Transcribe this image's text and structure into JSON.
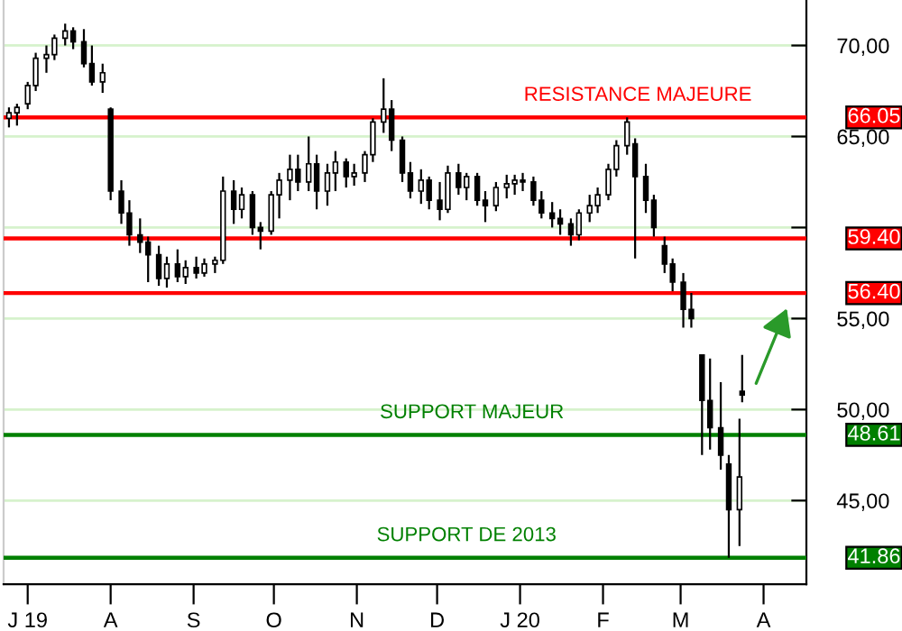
{
  "chart_data": {
    "type": "candlestick",
    "x": [
      "2019-06-24",
      "2019-06-27",
      "2019-07-01",
      "2019-07-04",
      "2019-07-08",
      "2019-07-11",
      "2019-07-15",
      "2019-07-18",
      "2019-07-22",
      "2019-07-25",
      "2019-07-29",
      "2019-08-01",
      "2019-08-05",
      "2019-08-08",
      "2019-08-12",
      "2019-08-15",
      "2019-08-19",
      "2019-08-22",
      "2019-08-26",
      "2019-08-29",
      "2019-09-02",
      "2019-09-05",
      "2019-09-09",
      "2019-09-12",
      "2019-09-16",
      "2019-09-19",
      "2019-09-23",
      "2019-09-26",
      "2019-09-30",
      "2019-10-03",
      "2019-10-07",
      "2019-10-10",
      "2019-10-14",
      "2019-10-17",
      "2019-10-21",
      "2019-10-24",
      "2019-10-28",
      "2019-10-31",
      "2019-11-04",
      "2019-11-07",
      "2019-11-11",
      "2019-11-14",
      "2019-11-18",
      "2019-11-21",
      "2019-11-25",
      "2019-11-28",
      "2019-12-02",
      "2019-12-05",
      "2019-12-09",
      "2019-12-12",
      "2019-12-16",
      "2019-12-19",
      "2019-12-23",
      "2019-12-27",
      "2019-12-30",
      "2020-01-02",
      "2020-01-06",
      "2020-01-09",
      "2020-01-13",
      "2020-01-16",
      "2020-01-20",
      "2020-01-23",
      "2020-01-27",
      "2020-01-30",
      "2020-02-03",
      "2020-02-06",
      "2020-02-10",
      "2020-02-13",
      "2020-02-17",
      "2020-02-20",
      "2020-02-24",
      "2020-02-27",
      "2020-03-02",
      "2020-03-05",
      "2020-03-09",
      "2020-03-12",
      "2020-03-16",
      "2020-03-19",
      "2020-03-23",
      "2020-03-24"
    ],
    "ohlc": [
      [
        66.0,
        66.6,
        65.5,
        66.3
      ],
      [
        66.3,
        66.8,
        65.6,
        66.6
      ],
      [
        66.8,
        68.0,
        66.5,
        67.8
      ],
      [
        67.8,
        69.6,
        67.5,
        69.3
      ],
      [
        69.3,
        70.0,
        68.5,
        69.5
      ],
      [
        69.5,
        70.6,
        69.2,
        70.4
      ],
      [
        70.4,
        71.2,
        70.0,
        70.8
      ],
      [
        70.8,
        71.0,
        69.8,
        70.2
      ],
      [
        70.2,
        70.9,
        68.8,
        69.0
      ],
      [
        69.0,
        70.0,
        67.8,
        68.0
      ],
      [
        68.0,
        69.0,
        67.4,
        68.5
      ],
      [
        66.5,
        66.6,
        61.5,
        62.0
      ],
      [
        62.0,
        62.6,
        60.2,
        60.8
      ],
      [
        60.8,
        61.5,
        59.0,
        59.6
      ],
      [
        59.6,
        60.5,
        58.6,
        59.2
      ],
      [
        59.2,
        59.5,
        57.0,
        58.5
      ],
      [
        58.5,
        59.0,
        56.8,
        57.2
      ],
      [
        57.2,
        58.4,
        56.7,
        58.0
      ],
      [
        58.0,
        58.8,
        57.0,
        57.3
      ],
      [
        57.3,
        58.2,
        56.9,
        57.8
      ],
      [
        57.8,
        58.4,
        57.2,
        57.5
      ],
      [
        57.5,
        58.3,
        57.3,
        58.0
      ],
      [
        58.0,
        58.4,
        57.5,
        58.2
      ],
      [
        58.2,
        62.8,
        58.0,
        62.0
      ],
      [
        62.0,
        62.6,
        60.2,
        61.0
      ],
      [
        61.0,
        62.2,
        60.5,
        61.8
      ],
      [
        61.8,
        62.0,
        59.6,
        60.0
      ],
      [
        60.0,
        60.3,
        58.8,
        59.8
      ],
      [
        59.8,
        62.0,
        59.6,
        61.8
      ],
      [
        61.8,
        63.0,
        60.5,
        62.6
      ],
      [
        62.6,
        64.0,
        61.5,
        63.2
      ],
      [
        63.2,
        64.0,
        62.0,
        62.5
      ],
      [
        62.5,
        65.0,
        62.0,
        63.5
      ],
      [
        63.5,
        64.0,
        61.0,
        62.0
      ],
      [
        62.0,
        63.5,
        61.2,
        63.0
      ],
      [
        63.0,
        64.2,
        62.0,
        63.6
      ],
      [
        63.6,
        63.8,
        62.2,
        62.8
      ],
      [
        62.8,
        63.5,
        62.3,
        63.0
      ],
      [
        63.0,
        64.2,
        62.5,
        64.0
      ],
      [
        64.0,
        66.0,
        63.6,
        65.8
      ],
      [
        65.8,
        68.2,
        65.2,
        66.5
      ],
      [
        66.5,
        67.0,
        64.2,
        64.8
      ],
      [
        64.8,
        65.0,
        62.5,
        63.0
      ],
      [
        63.0,
        63.6,
        61.6,
        62.0
      ],
      [
        62.0,
        63.2,
        61.3,
        62.6
      ],
      [
        62.6,
        62.8,
        61.0,
        61.5
      ],
      [
        61.5,
        62.5,
        60.4,
        61.0
      ],
      [
        61.0,
        63.4,
        60.8,
        63.0
      ],
      [
        63.0,
        63.5,
        61.8,
        62.2
      ],
      [
        62.2,
        63.0,
        61.5,
        62.8
      ],
      [
        62.8,
        63.0,
        61.2,
        61.5
      ],
      [
        61.5,
        62.0,
        60.3,
        61.2
      ],
      [
        61.2,
        62.5,
        60.9,
        62.2
      ],
      [
        62.2,
        62.9,
        61.6,
        62.4
      ],
      [
        62.4,
        62.9,
        61.8,
        62.6
      ],
      [
        62.6,
        63.0,
        62.0,
        62.5
      ],
      [
        62.5,
        62.8,
        61.2,
        61.5
      ],
      [
        61.5,
        62.0,
        60.5,
        60.8
      ],
      [
        60.8,
        61.4,
        60.0,
        60.5
      ],
      [
        60.5,
        61.0,
        59.6,
        60.2
      ],
      [
        60.2,
        60.5,
        59.0,
        59.6
      ],
      [
        59.6,
        61.0,
        59.3,
        60.8
      ],
      [
        60.8,
        61.8,
        60.3,
        61.2
      ],
      [
        61.2,
        62.2,
        60.8,
        61.8
      ],
      [
        61.8,
        63.5,
        61.5,
        63.2
      ],
      [
        63.2,
        64.8,
        62.8,
        64.5
      ],
      [
        64.5,
        66.05,
        64.0,
        65.8
      ],
      [
        64.6,
        64.9,
        58.3,
        62.8
      ],
      [
        62.8,
        63.5,
        60.8,
        61.5
      ],
      [
        61.5,
        61.8,
        59.5,
        60.0
      ],
      [
        59.0,
        59.5,
        57.5,
        58.0
      ],
      [
        58.0,
        58.3,
        56.5,
        57.0
      ],
      [
        57.0,
        57.5,
        54.5,
        55.5
      ],
      [
        55.5,
        56.4,
        54.5,
        55.0
      ],
      [
        53.0,
        53.0,
        47.5,
        50.5
      ],
      [
        50.5,
        52.8,
        47.8,
        49.0
      ],
      [
        49.0,
        51.5,
        46.7,
        47.5
      ],
      [
        47.0,
        47.5,
        41.86,
        44.5
      ],
      [
        44.5,
        49.5,
        42.5,
        46.3
      ],
      [
        51.0,
        53.0,
        50.4,
        50.8
      ]
    ],
    "color": "#000000",
    "xlim": [
      "2019-06-22",
      "2020-04-17"
    ],
    "xticks": [
      {
        "value": "2019-07-01",
        "label": "J 19"
      },
      {
        "value": "2019-08-01",
        "label": "A"
      },
      {
        "value": "2019-09-01",
        "label": "S"
      },
      {
        "value": "2019-10-01",
        "label": "O"
      },
      {
        "value": "2019-11-01",
        "label": "N"
      },
      {
        "value": "2019-12-01",
        "label": "D"
      },
      {
        "value": "2020-01-01",
        "label": "J 20"
      },
      {
        "value": "2020-02-01",
        "label": "F"
      },
      {
        "value": "2020-03-01",
        "label": "M"
      },
      {
        "value": "2020-04-01",
        "label": "A"
      }
    ],
    "ylim": [
      40.4,
      72.5
    ],
    "yticks": [
      {
        "value": 45,
        "label": "45,00"
      },
      {
        "value": 50,
        "label": "50,00"
      },
      {
        "value": 55,
        "label": "55,00"
      },
      {
        "value": 60,
        "label": null
      },
      {
        "value": 65,
        "label": "65,00"
      },
      {
        "value": 70,
        "label": "70,00"
      }
    ],
    "grid": "y",
    "ref_lines": [
      {
        "axis": "y",
        "value": 66.05,
        "label": "66.05",
        "color": "#ff0000"
      },
      {
        "axis": "y",
        "value": 59.4,
        "label": "59.40",
        "color": "#ff0000"
      },
      {
        "axis": "y",
        "value": 56.4,
        "label": "56.40",
        "color": "#ff0000"
      },
      {
        "axis": "y",
        "value": 48.61,
        "label": "48.61",
        "color": "#008000"
      },
      {
        "axis": "y",
        "value": 41.86,
        "label": "41.86",
        "color": "#008000"
      }
    ],
    "annotations": [
      {
        "text": "RESISTANCE MAJEURE",
        "x": "2020-02-14",
        "y": 66.05
      },
      {
        "text": "SUPPORT MAJEUR",
        "x": "2019-12-14",
        "y": 48.61
      },
      {
        "text": "SUPPORT DE 2013",
        "x": "2019-12-12",
        "y": 41.86
      }
    ]
  }
}
